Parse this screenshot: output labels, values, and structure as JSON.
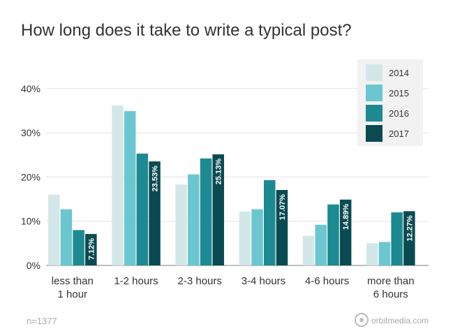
{
  "chart_data": {
    "type": "bar",
    "title": "How long does it take to write a typical post?",
    "categories": [
      [
        "less than",
        "1 hour"
      ],
      [
        "1-2 hours"
      ],
      [
        "2-3 hours"
      ],
      [
        "3-4 hours"
      ],
      [
        "4-6 hours"
      ],
      [
        "more than",
        "6 hours"
      ]
    ],
    "series": [
      {
        "name": "2014",
        "color": "#d3e7e9",
        "values": [
          16.0,
          36.2,
          18.3,
          12.2,
          6.7,
          5.0
        ]
      },
      {
        "name": "2015",
        "color": "#6cc6d0",
        "values": [
          12.7,
          34.9,
          20.6,
          12.7,
          9.2,
          5.3
        ]
      },
      {
        "name": "2016",
        "color": "#1d8a91",
        "values": [
          8.0,
          25.3,
          24.2,
          19.3,
          13.8,
          12.0
        ]
      },
      {
        "name": "2017",
        "color": "#0a4b52",
        "values": [
          7.12,
          23.53,
          25.13,
          17.07,
          14.89,
          12.27
        ]
      }
    ],
    "data_labels": [
      "7.12%",
      "23.53%",
      "25.13%",
      "17.07%",
      "14.89%",
      "12.27%"
    ],
    "y_ticks": [
      0,
      10,
      20,
      30,
      40
    ],
    "y_tick_labels": [
      "0%",
      "10%",
      "20%",
      "30%",
      "40%"
    ],
    "ylim": [
      0,
      44
    ],
    "legend_position": "top-right",
    "grid": true,
    "note": "n=1377",
    "brand": "orbitmedia.com"
  }
}
